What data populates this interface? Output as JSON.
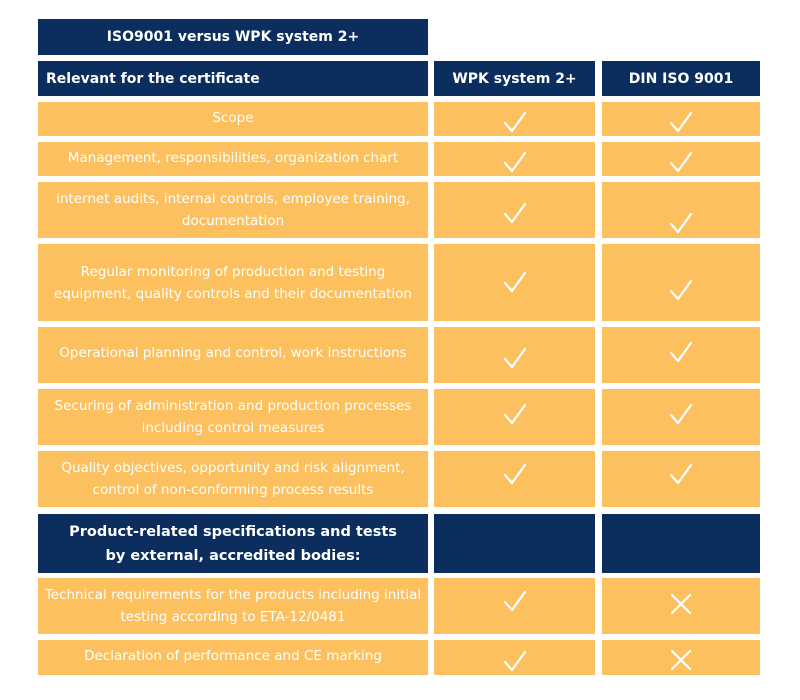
{
  "title": "ISO9001 versus WPK system 2+",
  "header": {
    "relevant_label": "Relevant for the certificate",
    "col_wpk": "WPK system 2+",
    "col_din": "DIN ISO 9001"
  },
  "section_label": "Product-related specifications and tests by external, accredited bodies:",
  "rows": [
    {
      "label": "Scope",
      "wpk": "check",
      "din": "check"
    },
    {
      "label": "Management, responsibilities, organization chart",
      "wpk": "check",
      "din": "check"
    },
    {
      "label": "internet audits, internal controls, employee training, documentation",
      "wpk": "check",
      "din": "check"
    },
    {
      "label": "Regular monitoring of production and testing equipment, quality controls and their documentation",
      "wpk": "check",
      "din": "check"
    },
    {
      "label": "Operational planning and control, work instructions",
      "wpk": "check",
      "din": "check"
    },
    {
      "label": "Securing of administration and production processes including control measures",
      "wpk": "check",
      "din": "check"
    },
    {
      "label": "Quality objectives, opportunity and risk alignment, control of non-conforming process results",
      "wpk": "check",
      "din": "check"
    },
    {
      "label": "Technical requirements for the products including initial testing according to ETA-12/0481",
      "wpk": "check",
      "din": "cross"
    },
    {
      "label": "Declaration of performance and CE marking",
      "wpk": "check",
      "din": "cross"
    }
  ],
  "colors": {
    "navy": "#0b2e5e",
    "orange": "#fcc05f",
    "mark": "#ffffff"
  },
  "icons": {
    "check": "check-icon",
    "cross": "cross-icon"
  }
}
